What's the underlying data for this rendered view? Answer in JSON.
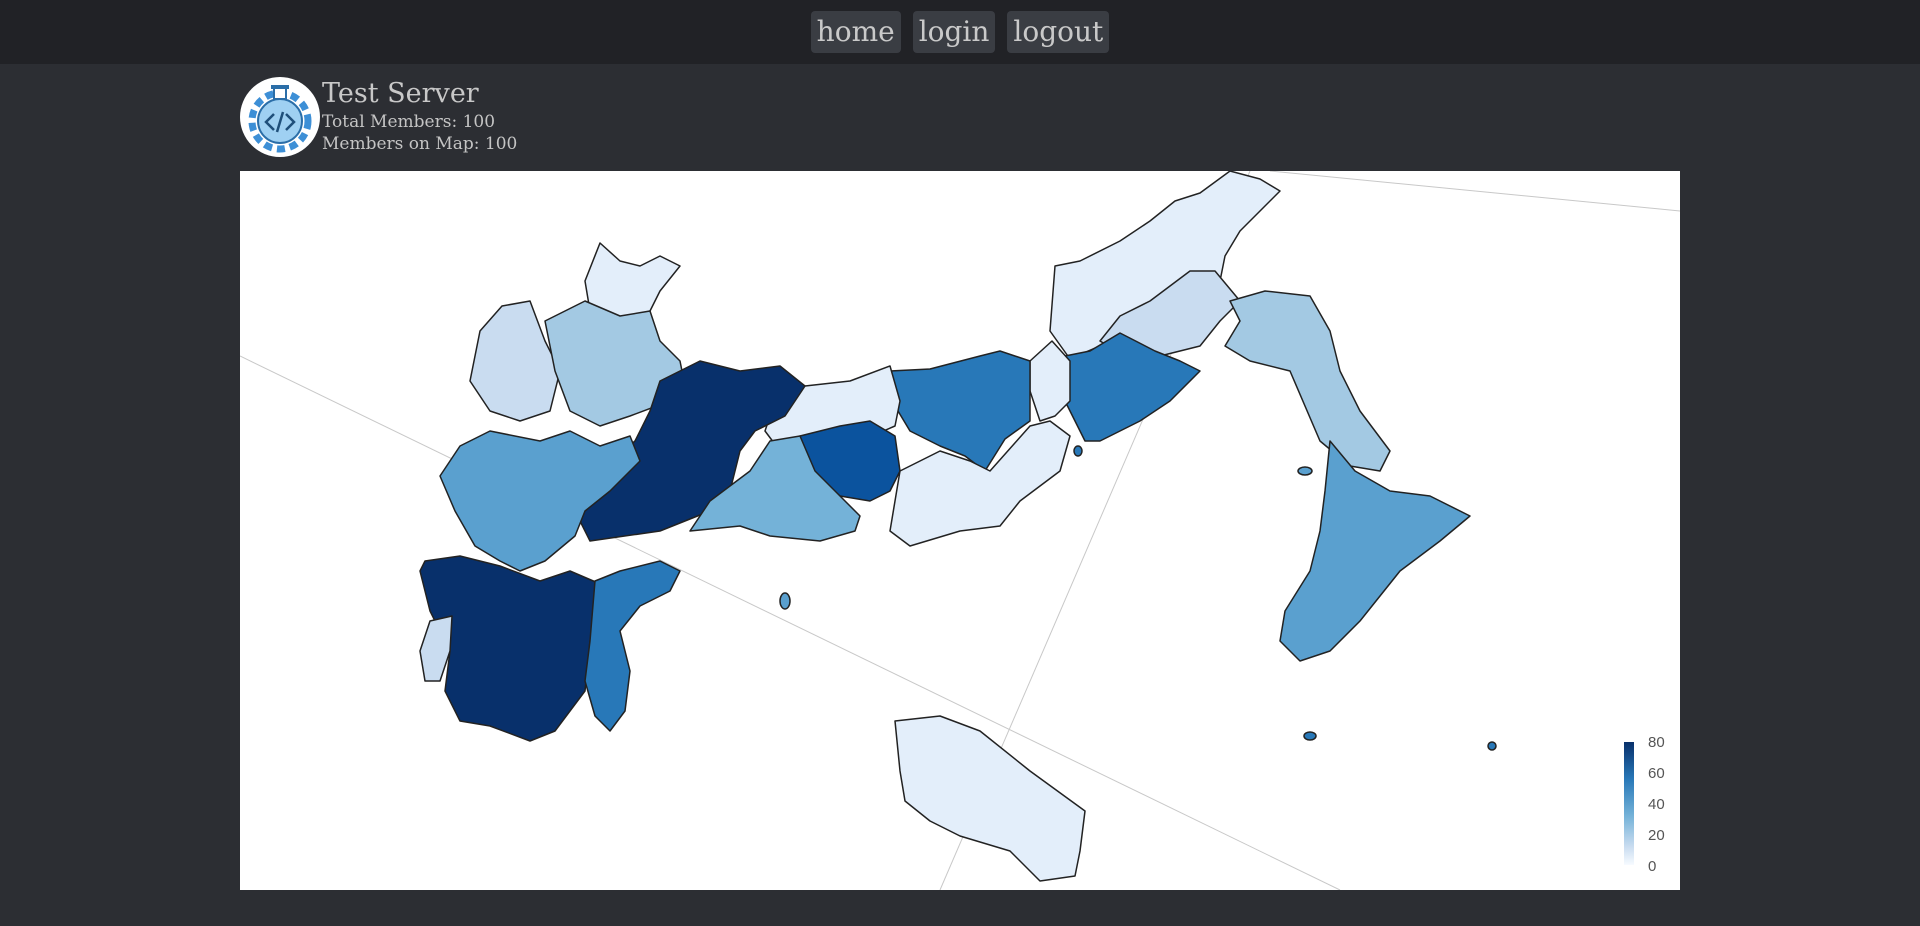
{
  "nav": {
    "items": [
      {
        "label": "home"
      },
      {
        "label": "login"
      },
      {
        "label": "logout"
      }
    ]
  },
  "server": {
    "name": "Test Server",
    "total_members": "Total Members: 100",
    "members_on_map": "Members on Map: 100",
    "logo_icon": "code-gear-flask-icon"
  },
  "map": {
    "type": "choropleth",
    "colorscale": "Blues",
    "legend": {
      "ticks": [
        "80",
        "60",
        "40",
        "20",
        "0"
      ],
      "range": [
        0,
        80
      ],
      "placement": "bottom-right"
    },
    "colors": {
      "darkest": "#08306b",
      "dark": "#0b539e",
      "medium_dark": "#2878b8",
      "medium": "#5aa0cf",
      "medium_light": "#74b2d8",
      "light": "#a3c9e3",
      "lighter": "#c9dcf0",
      "lightest": "#e3eefa"
    }
  }
}
